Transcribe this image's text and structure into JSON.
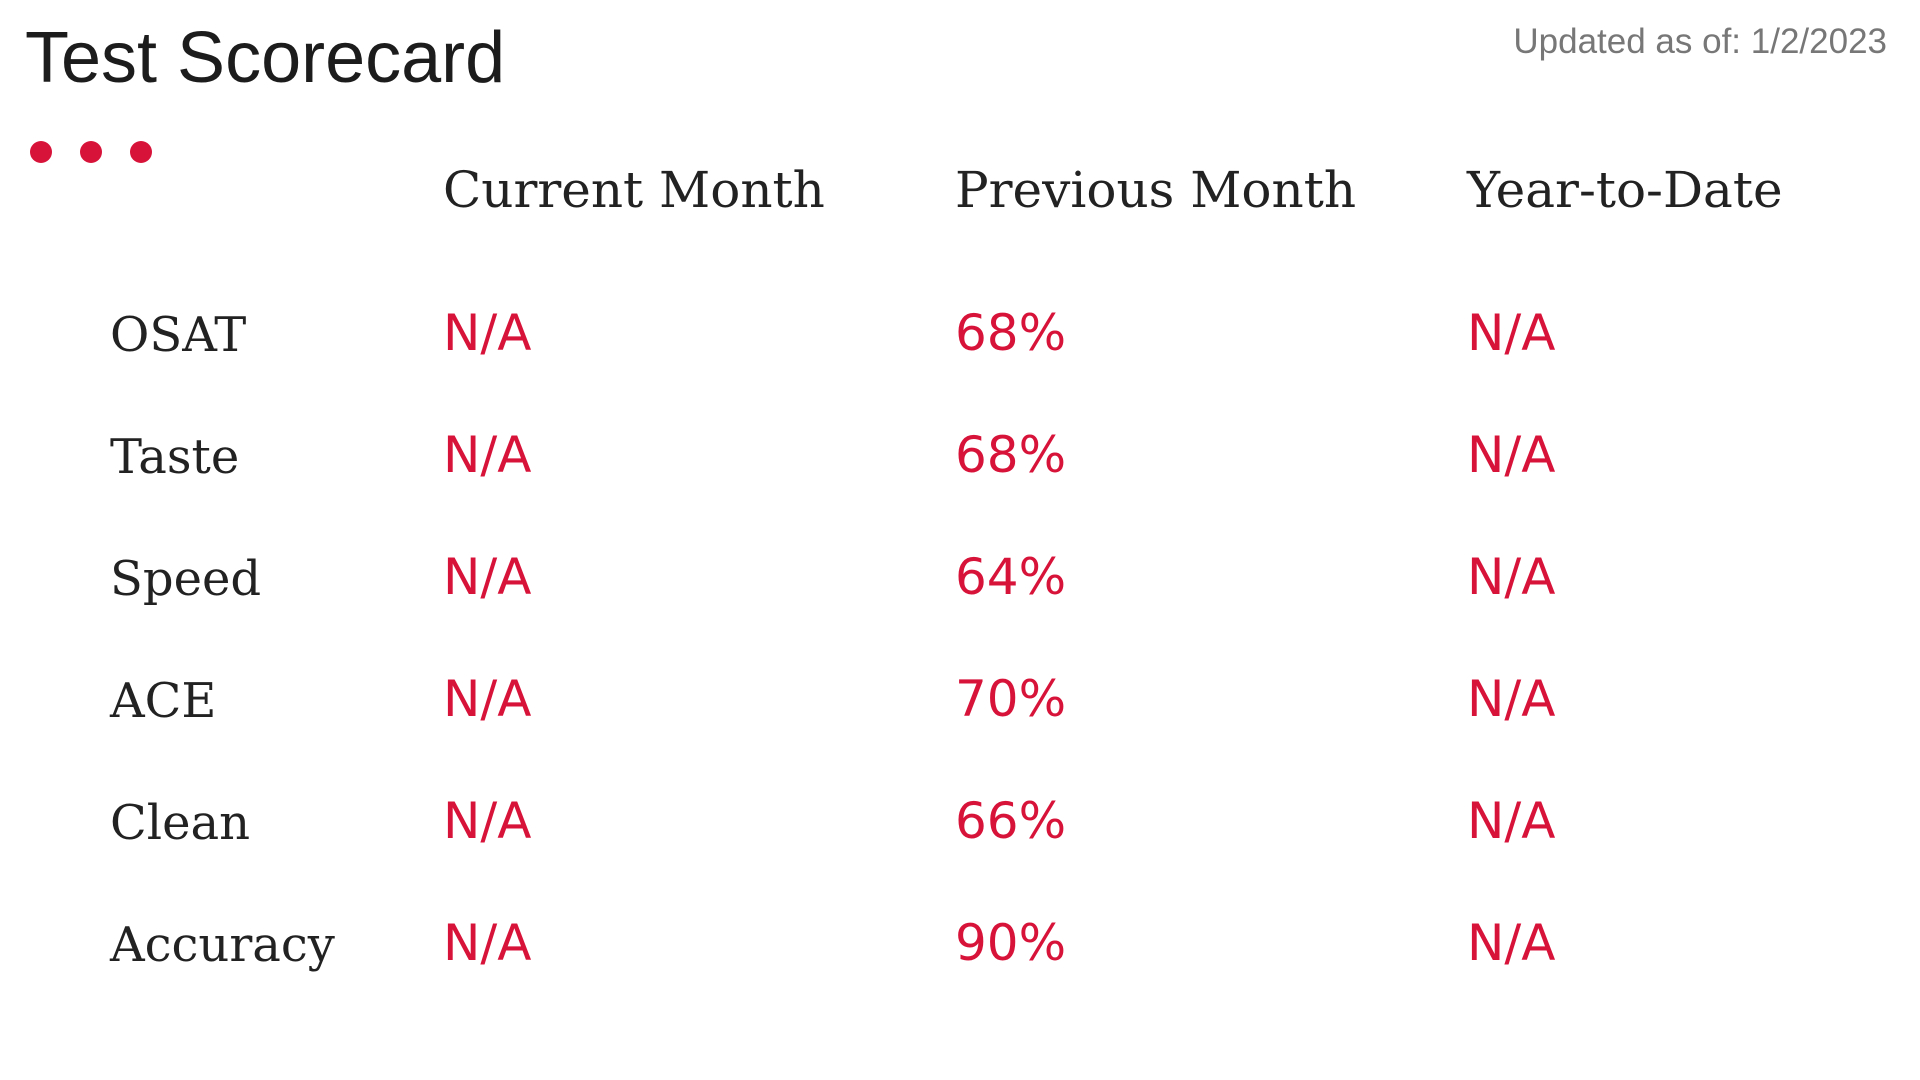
{
  "title": "Test Scorecard",
  "updated": "Updated as of: 1/2/2023",
  "accent_color": "#d8133a",
  "dots_icon": "ellipsis-dots-icon",
  "columns": [
    "Current Month",
    "Previous Month",
    "Year-to-Date"
  ],
  "rows": [
    {
      "label": "OSAT",
      "current": "N/A",
      "previous": "68%",
      "ytd": "N/A"
    },
    {
      "label": "Taste",
      "current": "N/A",
      "previous": "68%",
      "ytd": "N/A"
    },
    {
      "label": "Speed",
      "current": "N/A",
      "previous": "64%",
      "ytd": "N/A"
    },
    {
      "label": "ACE",
      "current": "N/A",
      "previous": "70%",
      "ytd": "N/A"
    },
    {
      "label": "Clean",
      "current": "N/A",
      "previous": "66%",
      "ytd": "N/A"
    },
    {
      "label": "Accuracy",
      "current": "N/A",
      "previous": "90%",
      "ytd": "N/A"
    }
  ]
}
